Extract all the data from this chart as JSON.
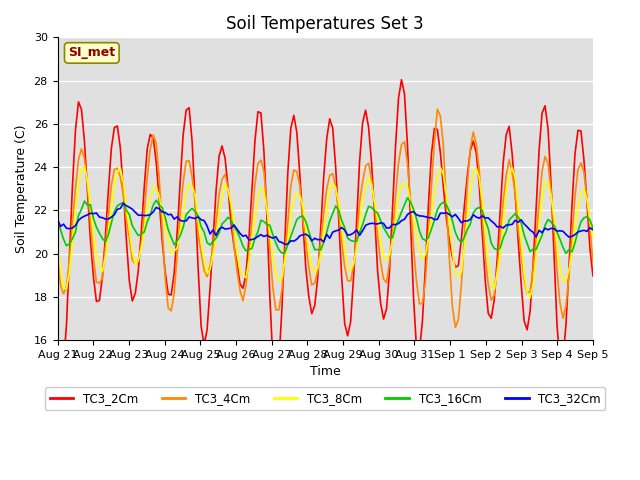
{
  "title": "Soil Temperatures Set 3",
  "xlabel": "Time",
  "ylabel": "Soil Temperature (C)",
  "ylim": [
    16,
    30
  ],
  "yticks": [
    16,
    18,
    20,
    22,
    24,
    26,
    28,
    30
  ],
  "xlabels": [
    "Aug 21",
    "Aug 22",
    "Aug 23",
    "Aug 24",
    "Aug 25",
    "Aug 26",
    "Aug 27",
    "Aug 28",
    "Aug 29",
    "Aug 30",
    "Aug 31",
    "Sep 1",
    "Sep 2",
    "Sep 3",
    "Sep 4",
    "Sep 5"
  ],
  "colors": {
    "TC3_2Cm": "#ff0000",
    "TC3_4Cm": "#ff8800",
    "TC3_8Cm": "#ffff00",
    "TC3_16Cm": "#00cc00",
    "TC3_32Cm": "#0000ff"
  },
  "annotation_text": "SI_met",
  "bg_color": "#e0e0e0",
  "fig_color": "#ffffff",
  "title_fontsize": 12,
  "label_fontsize": 9,
  "tick_fontsize": 8,
  "linewidth": 1.2
}
